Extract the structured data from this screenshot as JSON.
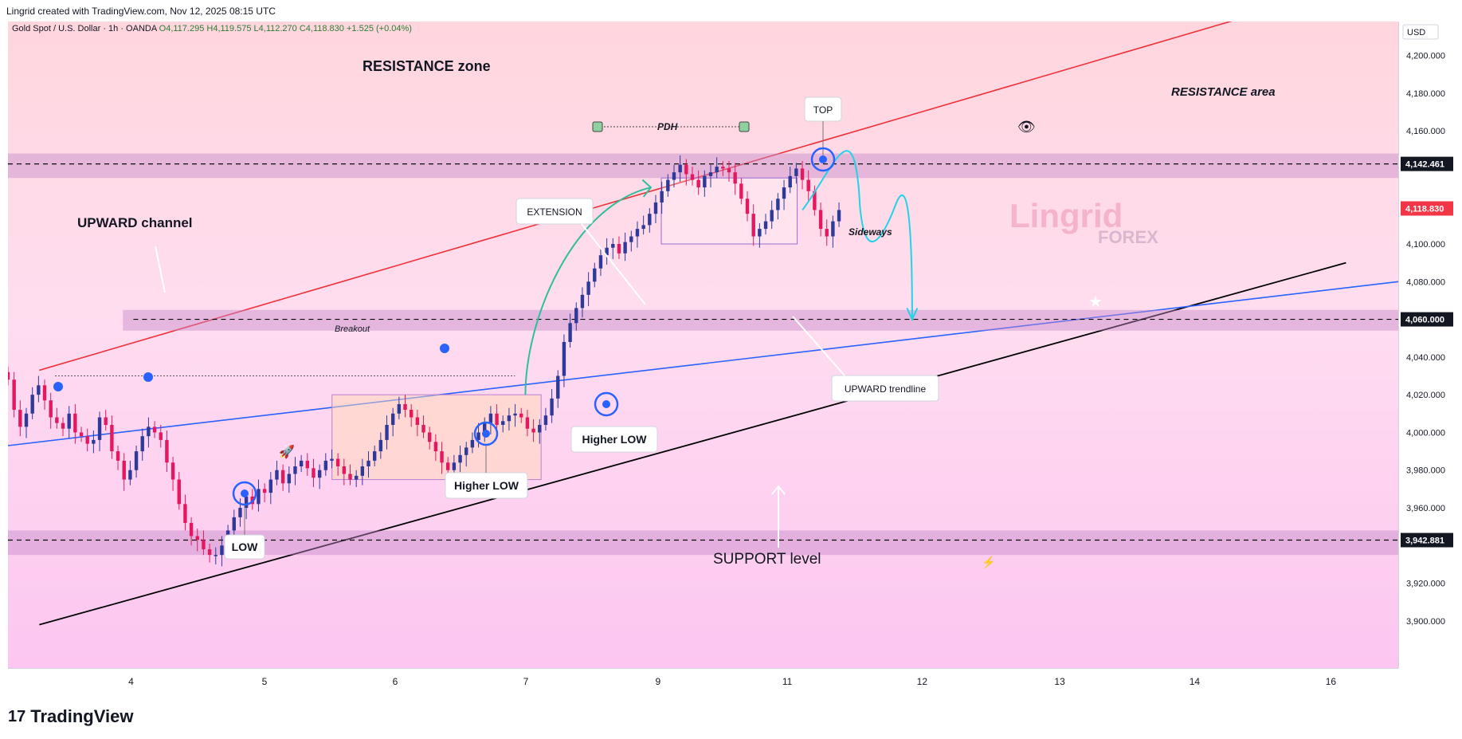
{
  "header": {
    "credit": "Lingrid created with TradingView.com, Nov 12, 2025 08:15 UTC"
  },
  "footer": {
    "brand": "TradingView",
    "logo_icon": "tradingview-logo-icon"
  },
  "colors": {
    "bull": "#2e3a99",
    "bear": "#e5175f",
    "channel_top": "#f0313a",
    "trend_blue": "#2962ff",
    "trend_black": "#000000",
    "zone": "#c58ac9",
    "projection": "#22d3e6",
    "extension_arrow": "#2ebf9a"
  },
  "chart_data": {
    "type": "candlestick",
    "symbol_line": "Gold Spot / U.S. Dollar · 1h · OANDA",
    "ohlc": {
      "o": "O4,117.295",
      "h": "H4,119.575",
      "l": "L4,112.270",
      "c": "C4,118.830",
      "chg": "+1.525 (+0.04%)"
    },
    "currency": "USD",
    "x_range": [
      3,
      16.3
    ],
    "y_range": [
      3875,
      4218
    ],
    "x_ticks": [
      {
        "x": 4,
        "label": "4"
      },
      {
        "x": 5,
        "label": "5"
      },
      {
        "x": 6,
        "label": "6"
      },
      {
        "x": 7,
        "label": "7"
      },
      {
        "x": 8,
        "label": "9"
      },
      {
        "x": 9,
        "label": "11"
      },
      {
        "x": 10,
        "label": "12"
      },
      {
        "x": 11,
        "label": "13"
      },
      {
        "x": 12,
        "label": "14"
      },
      {
        "x": 13,
        "label": "16"
      }
    ],
    "y_ticks": [
      {
        "y": 4200,
        "label": "4,200.000"
      },
      {
        "y": 4180,
        "label": "4,180.000"
      },
      {
        "y": 4160,
        "label": "4,160.000"
      },
      {
        "y": 4100,
        "label": "4,100.000"
      },
      {
        "y": 4080,
        "label": "4,080.000"
      },
      {
        "y": 4040,
        "label": "4,040.000"
      },
      {
        "y": 4020,
        "label": "4,020.000"
      },
      {
        "y": 4000,
        "label": "4,000.000"
      },
      {
        "y": 3980,
        "label": "3,980.000"
      },
      {
        "y": 3960,
        "label": "3,960.000"
      },
      {
        "y": 3920,
        "label": "3,920.000"
      },
      {
        "y": 3900,
        "label": "3,900.000"
      }
    ],
    "price_labels": [
      {
        "y": 4142.461,
        "label": "4,142.461",
        "style": "dark"
      },
      {
        "y": 4118.83,
        "label": "4,118.830",
        "style": "red"
      },
      {
        "y": 4060.0,
        "label": "4,060.000",
        "style": "dark"
      },
      {
        "y": 3942.881,
        "label": "3,942.881",
        "style": "dark"
      }
    ],
    "closes": [
      4028,
      4012,
      4003,
      4010,
      4020,
      4025,
      4017,
      4008,
      4005,
      4002,
      4010,
      4000,
      3998,
      3994,
      3996,
      4008,
      4004,
      3990,
      3985,
      3975,
      3980,
      3990,
      3998,
      4003,
      4000,
      3996,
      3984,
      3975,
      3962,
      3952,
      3945,
      3943,
      3938,
      3935,
      3935,
      3940,
      3948,
      3955,
      3960,
      3966,
      3962,
      3970,
      3968,
      3975,
      3980,
      3973,
      3978,
      3982,
      3985,
      3981,
      3976,
      3980,
      3985,
      3986,
      3982,
      3978,
      3975,
      3977,
      3982,
      3985,
      3990,
      3996,
      4004,
      4010,
      4015,
      4012,
      4008,
      4004,
      4000,
      3995,
      3990,
      3984,
      3980,
      3984,
      3988,
      3992,
      3996,
      4000,
      4005,
      4010,
      4004,
      4006,
      4009,
      4010,
      4008,
      4002,
      4000,
      4004,
      4009,
      4018,
      4030,
      4048,
      4058,
      4066,
      4073,
      4080,
      4087,
      4094,
      4098,
      4100,
      4095,
      4101,
      4104,
      4108,
      4110,
      4116,
      4122,
      4128,
      4134,
      4138,
      4142,
      4137,
      4134,
      4130,
      4136,
      4138,
      4141,
      4140,
      4138,
      4132,
      4124,
      4116,
      4104,
      4108,
      4112,
      4118,
      4124,
      4130,
      4136,
      4140,
      4134,
      4128,
      4118,
      4108,
      4104,
      4112,
      4118
    ],
    "zones": [
      {
        "name": "resistance-zone",
        "y_top": 4148,
        "y_bottom": 4135
      },
      {
        "name": "mid-zone",
        "y_top": 4065,
        "y_bottom": 4054
      },
      {
        "name": "support-zone",
        "y_top": 3948,
        "y_bottom": 3935
      }
    ],
    "levels": [
      4142.461,
      4060.0,
      3942.881
    ],
    "annotations": {
      "resistance_zone": "RESISTANCE zone",
      "resistance_area": "RESISTANCE area",
      "upward_channel": "UPWARD channel",
      "extension": "EXTENSION",
      "top": "TOP",
      "pdh": "PDH",
      "sideways": "Sideways",
      "breakout": "Breakout",
      "upward_trendline": "UPWARD trendline",
      "higher_low_1": "Higher LOW",
      "higher_low_2": "Higher LOW",
      "low": "LOW",
      "support_level": "SUPPORT level",
      "watermark_main": "Lingrid",
      "watermark_sub": "FOREX"
    }
  }
}
